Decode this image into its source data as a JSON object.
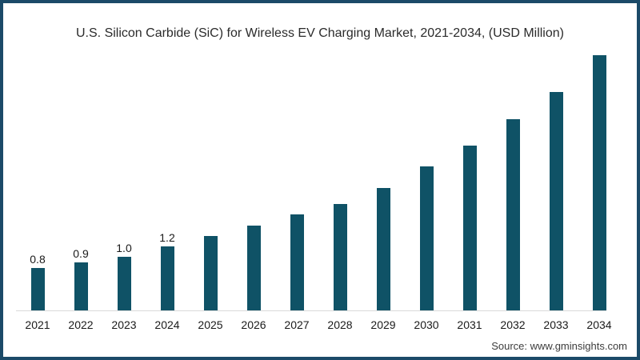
{
  "title": "U.S. Silicon Carbide (SiC) for Wireless EV Charging Market, 2021-2034, (USD Million)",
  "source": "Source: www.gminsights.com",
  "colors": {
    "bar": "#0F5266",
    "frame_border": "#1B4A68",
    "axis_line": "#DADADA",
    "title_text": "#2b2b2b",
    "label_text": "#1a1a1a",
    "source_text": "#3d3d3d",
    "background": "#ffffff"
  },
  "chart_data": {
    "type": "bar",
    "title": "U.S. Silicon Carbide (SiC) for Wireless EV Charging Market, 2021-2034, (USD Million)",
    "xlabel": "",
    "ylabel": "",
    "ylim": [
      0,
      5
    ],
    "grid": false,
    "legend": false,
    "categories": [
      "2021",
      "2022",
      "2023",
      "2024",
      "2025",
      "2026",
      "2027",
      "2028",
      "2029",
      "2030",
      "2031",
      "2032",
      "2033",
      "2034"
    ],
    "values": [
      0.8,
      0.9,
      1.0,
      1.2,
      1.4,
      1.6,
      1.8,
      2.0,
      2.3,
      2.7,
      3.1,
      3.6,
      4.1,
      4.8
    ],
    "data_labels": [
      "0.8",
      "0.9",
      "1.0",
      "1.2",
      "",
      "",
      "",
      "",
      "",
      "",
      "",
      "",
      "",
      ""
    ]
  }
}
